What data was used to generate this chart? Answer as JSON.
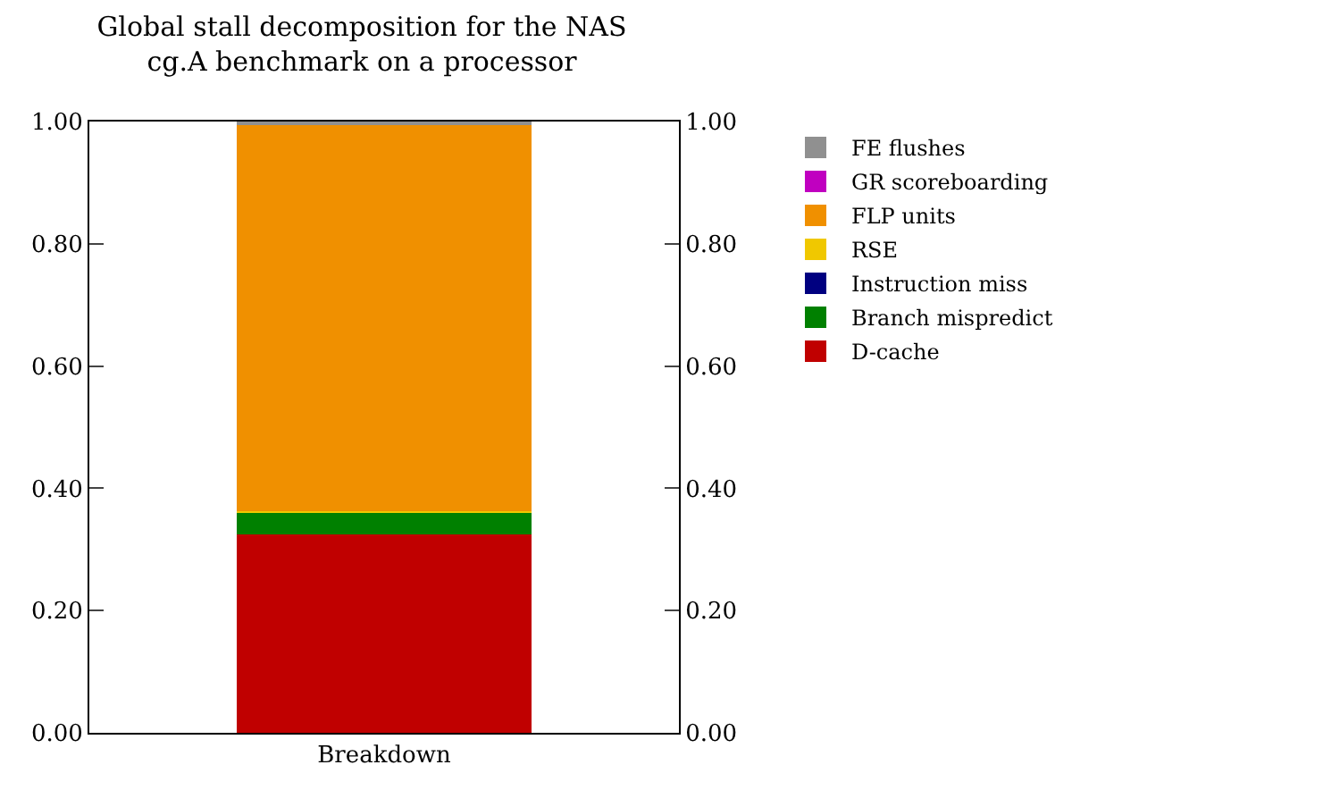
{
  "chart_data": {
    "type": "bar",
    "title": "Global stall decomposition for the NAS\ncg.A benchmark on a processor",
    "categories": [
      "Breakdown"
    ],
    "stacked": true,
    "series": [
      {
        "name": "D-cache",
        "color": "#c00000",
        "values": [
          0.324
        ]
      },
      {
        "name": "Branch mispredict",
        "color": "#008000",
        "values": [
          0.036
        ]
      },
      {
        "name": "Instruction miss",
        "color": "#000080",
        "values": [
          0
        ]
      },
      {
        "name": "RSE",
        "color": "#f0c800",
        "values": [
          0.002
        ]
      },
      {
        "name": "FLP units",
        "color": "#f09000",
        "values": [
          0.635
        ]
      },
      {
        "name": "GR scoreboarding",
        "color": "#c000c0",
        "values": [
          0
        ]
      },
      {
        "name": "FE flushes",
        "color": "#909090",
        "values": [
          0.003
        ]
      }
    ],
    "ylim": [
      0,
      1
    ],
    "yticks": [
      {
        "value": 0,
        "label": "0.00"
      },
      {
        "value": 0.2,
        "label": "0.20"
      },
      {
        "value": 0.4,
        "label": "0.40"
      },
      {
        "value": 0.6,
        "label": "0.60"
      },
      {
        "value": 0.8,
        "label": "0.80"
      },
      {
        "value": 1,
        "label": "1.00"
      }
    ],
    "grid": false,
    "legend": "top right"
  }
}
